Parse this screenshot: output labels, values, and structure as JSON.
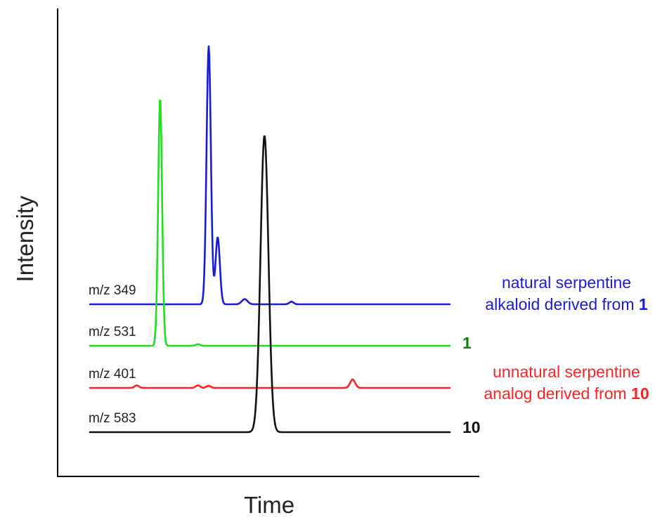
{
  "chart_data": {
    "type": "line",
    "xlabel": "Time",
    "ylabel": "Intensity",
    "series": [
      {
        "name": "m/z 349",
        "color": "#1a1adb",
        "annotation_lines": [
          {
            "text": "natural serpentine",
            "bold": ""
          },
          {
            "text": "alkaloid derived from ",
            "bold": "1"
          }
        ],
        "peaks": [
          {
            "time": 0.33,
            "height": 1.0,
            "width": 0.006
          },
          {
            "time": 0.355,
            "height": 0.26,
            "width": 0.006
          },
          {
            "time": 0.43,
            "height": 0.02,
            "width": 0.008
          },
          {
            "time": 0.56,
            "height": 0.01,
            "width": 0.006
          }
        ]
      },
      {
        "name": "m/z 531",
        "color": "#22dd22",
        "annotation_lines": [
          {
            "text": "",
            "bold": "1"
          }
        ],
        "peaks": [
          {
            "time": 0.195,
            "height": 1.0,
            "width": 0.0055
          },
          {
            "time": 0.3,
            "height": 0.006,
            "width": 0.006
          }
        ]
      },
      {
        "name": "m/z 401",
        "color": "#ff2222",
        "annotation_lines": [
          {
            "text": "unnatural serpentine",
            "bold": ""
          },
          {
            "text": "analog derived from ",
            "bold": "10"
          }
        ],
        "peaks": [
          {
            "time": 0.13,
            "height": 0.012,
            "width": 0.006
          },
          {
            "time": 0.3,
            "height": 0.012,
            "width": 0.006
          },
          {
            "time": 0.33,
            "height": 0.01,
            "width": 0.006
          },
          {
            "time": 0.73,
            "height": 0.04,
            "width": 0.007
          }
        ]
      },
      {
        "name": "m/z 583",
        "color": "#111111",
        "annotation_lines": [
          {
            "text": "",
            "bold": "10"
          }
        ],
        "peaks": [
          {
            "time": 0.485,
            "height": 1.0,
            "width": 0.011
          }
        ]
      }
    ]
  }
}
